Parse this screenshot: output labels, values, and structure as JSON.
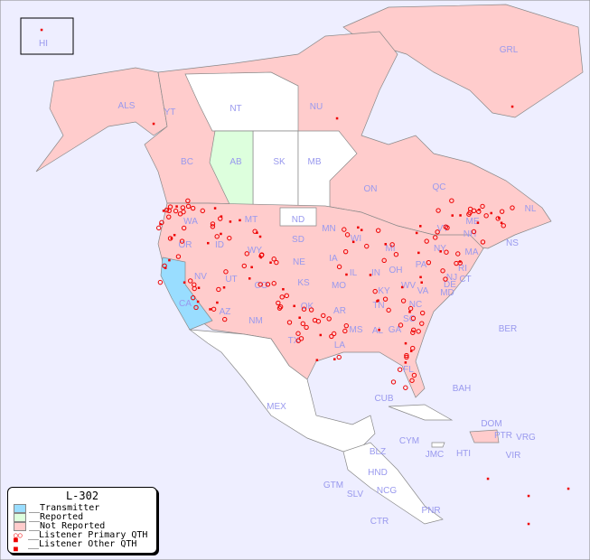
{
  "map": {
    "background": "#eeeeff",
    "colors": {
      "transmitter": "#99ddff",
      "reported": "#ddffdd",
      "not_reported": "#ffcccc",
      "none": "#ffffff",
      "marker": "#ee0000",
      "label": "#9999ee"
    },
    "labels": [
      "HI",
      "ALS",
      "YT",
      "NT",
      "NU",
      "GRL",
      "BC",
      "AB",
      "SK",
      "MB",
      "ON",
      "QC",
      "NL",
      "NS",
      "WA",
      "OR",
      "ID",
      "MT",
      "ND",
      "SD",
      "MN",
      "WI",
      "MI",
      "WY",
      "NE",
      "IA",
      "IL",
      "IN",
      "OH",
      "PA",
      "NY",
      "VT",
      "NH",
      "ME",
      "MA",
      "RI",
      "CT",
      "NJ",
      "DE",
      "MD",
      "WV",
      "VA",
      "KY",
      "TN",
      "NC",
      "SC",
      "GA",
      "FL",
      "AL",
      "MS",
      "LA",
      "AR",
      "MO",
      "KS",
      "OK",
      "TX",
      "NM",
      "CO",
      "UT",
      "AZ",
      "NV",
      "CA",
      "BER",
      "BAH",
      "CUB",
      "MEX",
      "CYM",
      "JMC",
      "HTI",
      "DOM",
      "PTR",
      "VRG",
      "VIR",
      "BLZ",
      "HND",
      "GTM",
      "SLV",
      "NCG",
      "CTR",
      "PNR"
    ]
  },
  "legend": {
    "title": "L-302",
    "items": [
      {
        "label": "__Transmitter",
        "color": "#99ddff"
      },
      {
        "label": "__Reported",
        "color": "#ddffdd"
      },
      {
        "label": "__Not Reported",
        "color": "#ffcccc"
      },
      {
        "label": "__Listener Primary QTH",
        "icon": "open-circle"
      },
      {
        "label": "__Listener Other QTH",
        "icon": "filled-square"
      }
    ]
  }
}
